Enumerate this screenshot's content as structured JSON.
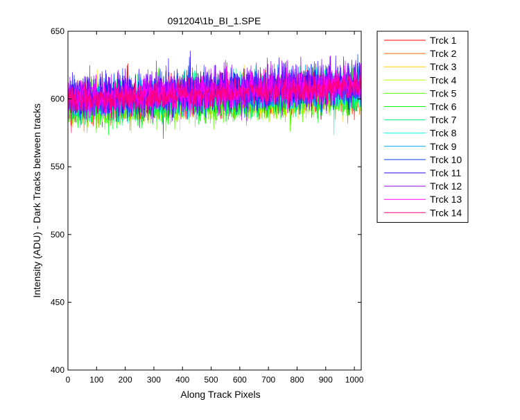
{
  "chart_data": {
    "type": "line",
    "title": "091204\\1b_BI_1.SPE",
    "xlabel": "Along Track Pixels",
    "ylabel": "Intensity (ADU) - Dark Tracks between tracks",
    "xlim": [
      0,
      1024
    ],
    "ylim": [
      400,
      650
    ],
    "xticks": [
      0,
      100,
      200,
      300,
      400,
      500,
      600,
      700,
      800,
      900,
      1000
    ],
    "yticks": [
      400,
      450,
      500,
      550,
      600,
      650
    ],
    "grid": false,
    "legend_position": "outside-right",
    "series": [
      {
        "name": "Trck 1",
        "color": "#ff0000",
        "x_range": [
          0,
          1024
        ],
        "y_start": 596,
        "y_end": 606,
        "noise": 7
      },
      {
        "name": "Trck 2",
        "color": "#ff6a00",
        "x_range": [
          0,
          1024
        ],
        "y_start": 595,
        "y_end": 605,
        "noise": 7
      },
      {
        "name": "Trck 3",
        "color": "#ffd500",
        "x_range": [
          0,
          1024
        ],
        "y_start": 596,
        "y_end": 606,
        "noise": 7
      },
      {
        "name": "Trck 4",
        "color": "#bfff00",
        "x_range": [
          0,
          1024
        ],
        "y_start": 594,
        "y_end": 604,
        "noise": 7
      },
      {
        "name": "Trck 5",
        "color": "#55ff00",
        "x_range": [
          0,
          1024
        ],
        "y_start": 593,
        "y_end": 602,
        "noise": 7
      },
      {
        "name": "Trck 6",
        "color": "#00ff15",
        "x_range": [
          0,
          1024
        ],
        "y_start": 594,
        "y_end": 603,
        "noise": 7
      },
      {
        "name": "Trck 7",
        "color": "#00ff80",
        "x_range": [
          0,
          1024
        ],
        "y_start": 597,
        "y_end": 607,
        "noise": 7
      },
      {
        "name": "Trck 8",
        "color": "#00ffea",
        "x_range": [
          0,
          1024
        ],
        "y_start": 598,
        "y_end": 608,
        "noise": 7
      },
      {
        "name": "Trck 9",
        "color": "#00aaff",
        "x_range": [
          0,
          1024
        ],
        "y_start": 599,
        "y_end": 609,
        "noise": 7
      },
      {
        "name": "Trck 10",
        "color": "#0040ff",
        "x_range": [
          0,
          1024
        ],
        "y_start": 600,
        "y_end": 610,
        "noise": 7
      },
      {
        "name": "Trck 11",
        "color": "#2a00ff",
        "x_range": [
          0,
          1024
        ],
        "y_start": 601,
        "y_end": 611,
        "noise": 8
      },
      {
        "name": "Trck 12",
        "color": "#9500ff",
        "x_range": [
          0,
          1024
        ],
        "y_start": 601,
        "y_end": 611,
        "noise": 8
      },
      {
        "name": "Trck 13",
        "color": "#ff00ff",
        "x_range": [
          0,
          1024
        ],
        "y_start": 600,
        "y_end": 610,
        "noise": 7
      },
      {
        "name": "Trck 14",
        "color": "#ff0080",
        "x_range": [
          0,
          1024
        ],
        "y_start": 599,
        "y_end": 609,
        "noise": 5
      }
    ]
  }
}
